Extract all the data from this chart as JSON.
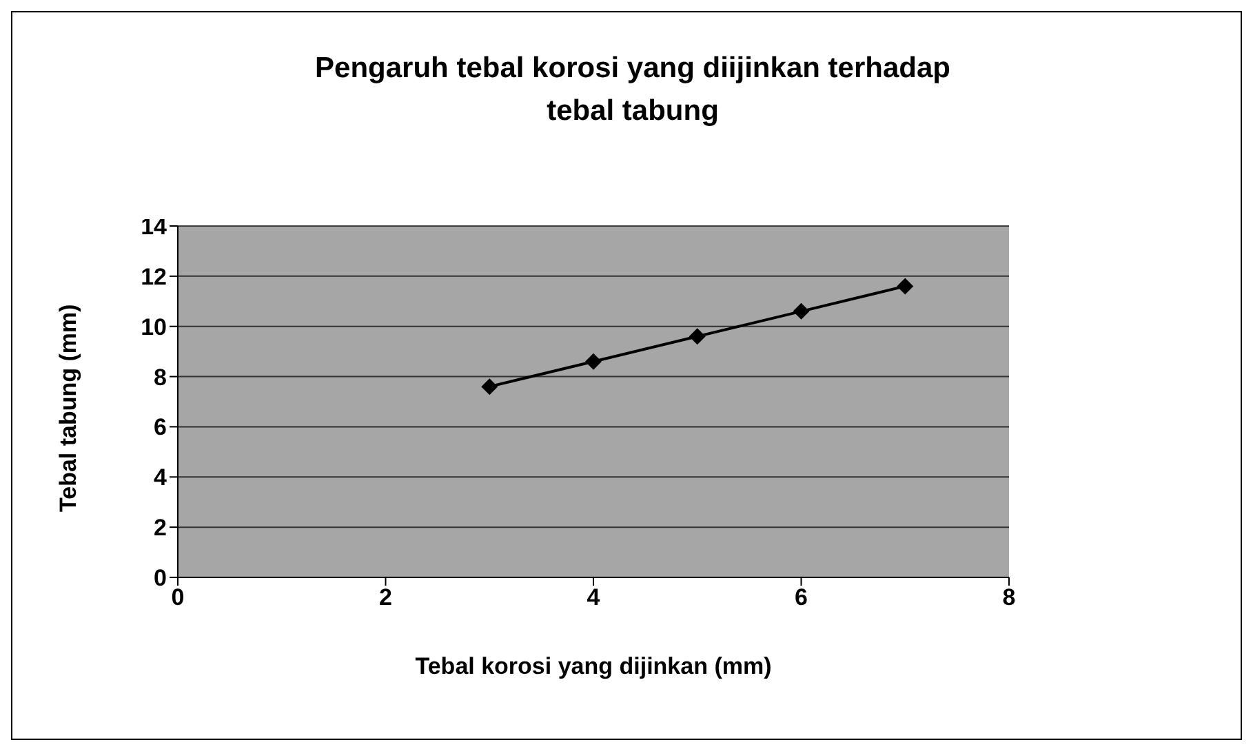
{
  "chart_data": {
    "type": "line",
    "title": "Pengaruh tebal korosi yang diijinkan terhadap tebal tabung",
    "xlabel": "Tebal korosi yang dijinkan (mm)",
    "ylabel": "Tebal tabung (mm)",
    "x": [
      3,
      4,
      5,
      6,
      7
    ],
    "series": [
      {
        "color": "#000000",
        "values": [
          7.6,
          8.6,
          9.6,
          10.6,
          11.6
        ]
      }
    ],
    "xlim": [
      0,
      8
    ],
    "xticks": [
      0,
      2,
      4,
      6,
      8
    ],
    "ylim": [
      0,
      14
    ],
    "yticks": [
      0,
      2,
      4,
      6,
      8,
      10,
      12,
      14
    ],
    "grid": "y",
    "legend": false,
    "marker": "diamond",
    "line_style": "solid"
  }
}
